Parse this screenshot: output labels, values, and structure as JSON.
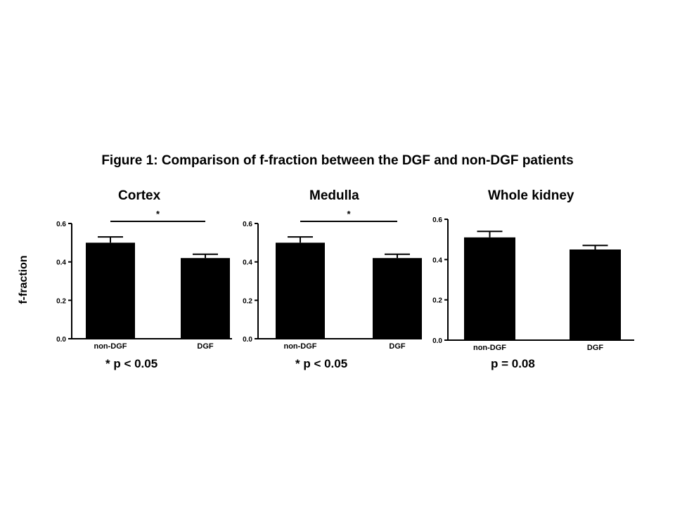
{
  "figure_title": "Figure 1: Comparison of f-fraction between the DGF and non-DGF patients",
  "ylabel": "f-fraction",
  "colors": {
    "bar": "#000000",
    "axis": "#000000",
    "background": "#ffffff"
  },
  "chart_data": [
    {
      "type": "bar",
      "title": "Cortex",
      "categories": [
        "non-DGF",
        "DGF"
      ],
      "values": [
        0.5,
        0.42
      ],
      "errors": [
        0.03,
        0.02
      ],
      "ylim": [
        0.0,
        0.6
      ],
      "yticks": [
        "0.0",
        "0.2",
        "0.4",
        "0.6"
      ],
      "ylabel": "f-fraction",
      "significance_marker": "*",
      "p_value_text": "* p < 0.05"
    },
    {
      "type": "bar",
      "title": "Medulla",
      "categories": [
        "non-DGF",
        "DGF"
      ],
      "values": [
        0.5,
        0.42
      ],
      "errors": [
        0.03,
        0.02
      ],
      "ylim": [
        0.0,
        0.6
      ],
      "yticks": [
        "0.0",
        "0.2",
        "0.4",
        "0.6"
      ],
      "ylabel": "",
      "significance_marker": "*",
      "p_value_text": "* p < 0.05"
    },
    {
      "type": "bar",
      "title": "Whole kidney",
      "categories": [
        "non-DGF",
        "DGF"
      ],
      "values": [
        0.51,
        0.45
      ],
      "errors": [
        0.03,
        0.02
      ],
      "ylim": [
        0.0,
        0.6
      ],
      "yticks": [
        "0.0",
        "0.2",
        "0.4",
        "0.6"
      ],
      "ylabel": "",
      "significance_marker": "",
      "p_value_text": "p = 0.08"
    }
  ]
}
